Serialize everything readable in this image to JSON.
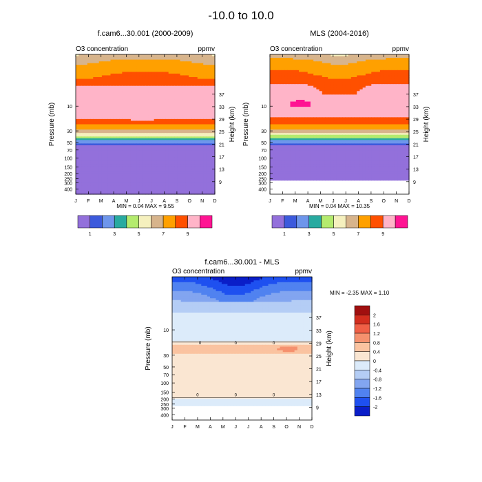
{
  "page_title": "-10.0 to  10.0",
  "colors": {
    "concentration_palette": [
      "#9370DB",
      "#3C5ADC",
      "#6E96EB",
      "#28AAA0",
      "#B4EB6E",
      "#F5F0BE",
      "#D7B48C",
      "#FFA000",
      "#FF5000",
      "#FFB4C8",
      "#FF1493"
    ],
    "difference_palette": [
      "#00008B",
      "#0A1EC8",
      "#1E50F0",
      "#5082F0",
      "#82A5F0",
      "#B4CDF5",
      "#DCEBFA",
      "#FAE6D2",
      "#FAC3A0",
      "#F5916E",
      "#F05F46",
      "#D22D1E",
      "#A00F0F",
      "#780000"
    ],
    "missing": "#ffffff"
  },
  "chart_data": [
    {
      "type": "heatmap",
      "panel": "model",
      "title": "f.cam6...30.001 (2000-2009)",
      "left_label": "O3 concentration",
      "right_label": "ppmv",
      "xlabel": "",
      "ylabel": "Pressure (mb)",
      "ylabel_right": "Height (km)",
      "x_categories": [
        "J",
        "F",
        "M",
        "A",
        "M",
        "J",
        "J",
        "A",
        "S",
        "O",
        "N",
        "D"
      ],
      "pressure_ticks": [
        "10",
        "30",
        "50",
        "70",
        "100",
        "150",
        "200",
        "250",
        "300",
        "400"
      ],
      "height_ticks": [
        "37",
        "33",
        "29",
        "25",
        "21",
        "17",
        "13",
        "9"
      ],
      "ylim_mb": [
        1,
        500
      ],
      "min_max_text": "MIN =  0.04  MAX =   9.55",
      "contour_levels": [
        1,
        2,
        3,
        4,
        5,
        6,
        7,
        8,
        9,
        10
      ],
      "colorbar_labels": [
        "1",
        "3",
        "5",
        "7",
        "9"
      ],
      "profile_pressure_mb": [
        1,
        1.5,
        2.5,
        4,
        6,
        10,
        15,
        20,
        25,
        30,
        35,
        40,
        45,
        50,
        60,
        500
      ],
      "profile_ppmv": [
        6.5,
        7.5,
        8.2,
        9.0,
        9.6,
        9.9,
        9.4,
        8.6,
        7.7,
        6.6,
        5.5,
        4.5,
        3.4,
        2.2,
        0.8,
        0.5
      ],
      "summer_max_ppmv": 9.55,
      "summer_max_pressure_range_mb": [
        5,
        15
      ]
    },
    {
      "type": "heatmap",
      "panel": "observation",
      "title": "MLS (2004-2016)",
      "left_label": "O3 concentration",
      "right_label": "ppmv",
      "xlabel": "",
      "ylabel": "Pressure (mb)",
      "ylabel_right": "Height (km)",
      "x_categories": [
        "J",
        "F",
        "M",
        "A",
        "M",
        "J",
        "J",
        "A",
        "S",
        "O",
        "N",
        "D"
      ],
      "pressure_ticks": [
        "10",
        "30",
        "50",
        "70",
        "100",
        "150",
        "200",
        "250",
        "300",
        "400"
      ],
      "height_ticks": [
        "37",
        "33",
        "29",
        "25",
        "21",
        "17",
        "13",
        "9"
      ],
      "ylim_mb": [
        1,
        500
      ],
      "data_bottom_mb": 260,
      "min_max_text": "MIN =  0.04  MAX =  10.35",
      "contour_levels": [
        1,
        2,
        3,
        4,
        5,
        6,
        7,
        8,
        9,
        10
      ],
      "colorbar_labels": [
        "1",
        "3",
        "5",
        "7",
        "9"
      ],
      "profile_pressure_mb": [
        1,
        1.5,
        2.5,
        4,
        6,
        10,
        15,
        20,
        25,
        30,
        35,
        40,
        45,
        50,
        60,
        260
      ],
      "profile_ppmv": [
        6.5,
        7.6,
        8.3,
        9.2,
        9.5,
        9.7,
        9.3,
        8.5,
        7.5,
        6.4,
        5.3,
        4.2,
        3.2,
        2.1,
        0.8,
        0.5
      ],
      "local_max_ppmv": 10.35,
      "local_max_location": {
        "month": "Feb-Mar",
        "pressure_mb": 9
      }
    },
    {
      "type": "heatmap",
      "panel": "difference",
      "title": "f.cam6...30.001 - MLS",
      "left_label": "O3 concentration",
      "right_label": "ppmv",
      "xlabel": "",
      "ylabel": "Pressure (mb)",
      "ylabel_right": "Height (km)",
      "x_categories": [
        "J",
        "F",
        "M",
        "A",
        "M",
        "J",
        "J",
        "A",
        "S",
        "O",
        "N",
        "D"
      ],
      "pressure_ticks": [
        "10",
        "30",
        "50",
        "70",
        "100",
        "150",
        "200",
        "250",
        "300",
        "400"
      ],
      "height_ticks": [
        "37",
        "33",
        "29",
        "25",
        "21",
        "17",
        "13",
        "9"
      ],
      "ylim_mb": [
        1,
        500
      ],
      "data_bottom_mb": 260,
      "min_max_text": "MIN = -2.35  MAX =   1.10",
      "contour_levels": [
        -2,
        -1.6,
        -1.2,
        -0.8,
        -0.4,
        0,
        0.4,
        0.8,
        1.2,
        1.6,
        2
      ],
      "colorbar_labels": [
        "2",
        "1.6",
        "1.2",
        "0.8",
        "0.4",
        "0",
        "-0.4",
        "-0.8",
        "-1.2",
        "-1.6",
        "-2"
      ],
      "contour_line_label": "0",
      "profile_pressure_mb": [
        1,
        1.5,
        2.5,
        4,
        6,
        10,
        13,
        16,
        20,
        25,
        30,
        40,
        60,
        100,
        200,
        260
      ],
      "profile_diff_ppmv": [
        -1.8,
        -1.4,
        -0.9,
        -0.5,
        -0.3,
        -0.2,
        -0.1,
        0.0,
        0.5,
        0.7,
        0.3,
        0.1,
        0.1,
        0.1,
        0.0,
        -0.1
      ],
      "minimum_location": {
        "month": "Jun",
        "pressure_mb": 1.2
      }
    }
  ]
}
